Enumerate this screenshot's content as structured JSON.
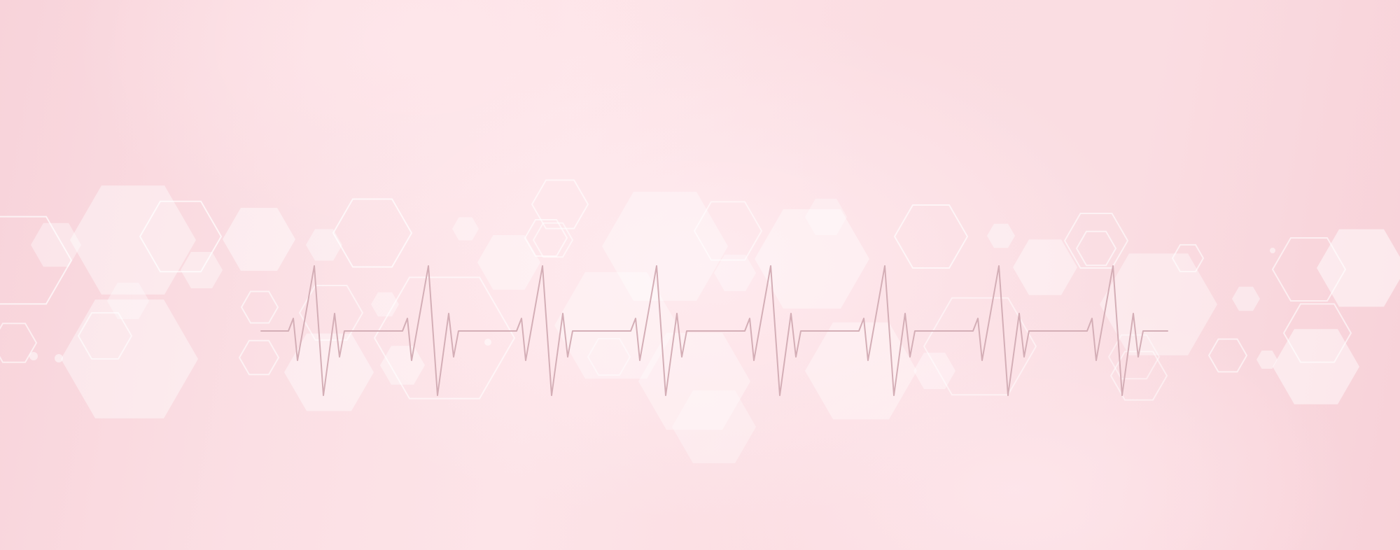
{
  "palette": {
    "background_light": "#fde4e8",
    "background_dark": "#f8d1d8",
    "hexagon_fill": "#ffffff",
    "hexagon_outline": "#ffffff",
    "heartbeat_line": "#d4aeb6"
  },
  "decorations": {
    "pattern": "hexagon",
    "motif": "heartbeat-line",
    "heartbeat_beats": 8
  }
}
